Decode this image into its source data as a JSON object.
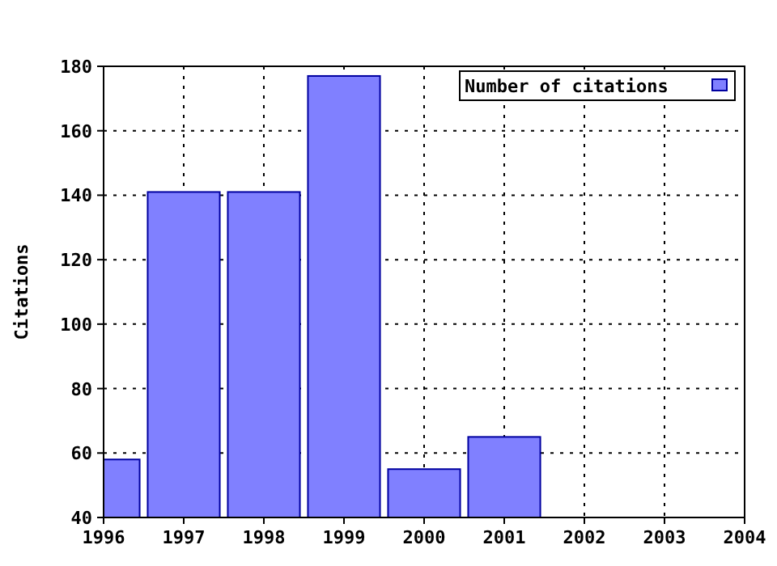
{
  "chart_data": {
    "type": "bar",
    "ylabel": "Citations",
    "x": [
      1996,
      1997,
      1998,
      1999,
      2000,
      2001
    ],
    "series": [
      {
        "name": "Number of citations",
        "color": "#8080ff",
        "values": [
          58,
          141,
          141,
          177,
          55,
          65
        ]
      }
    ],
    "xlim": [
      1996,
      2004
    ],
    "xticks": [
      1996,
      1997,
      1998,
      1999,
      2000,
      2001,
      2002,
      2003,
      2004
    ],
    "ylim": [
      40,
      180
    ],
    "yticks": [
      40,
      60,
      80,
      100,
      120,
      140,
      160,
      180
    ],
    "grid": true,
    "legend": "top right"
  }
}
